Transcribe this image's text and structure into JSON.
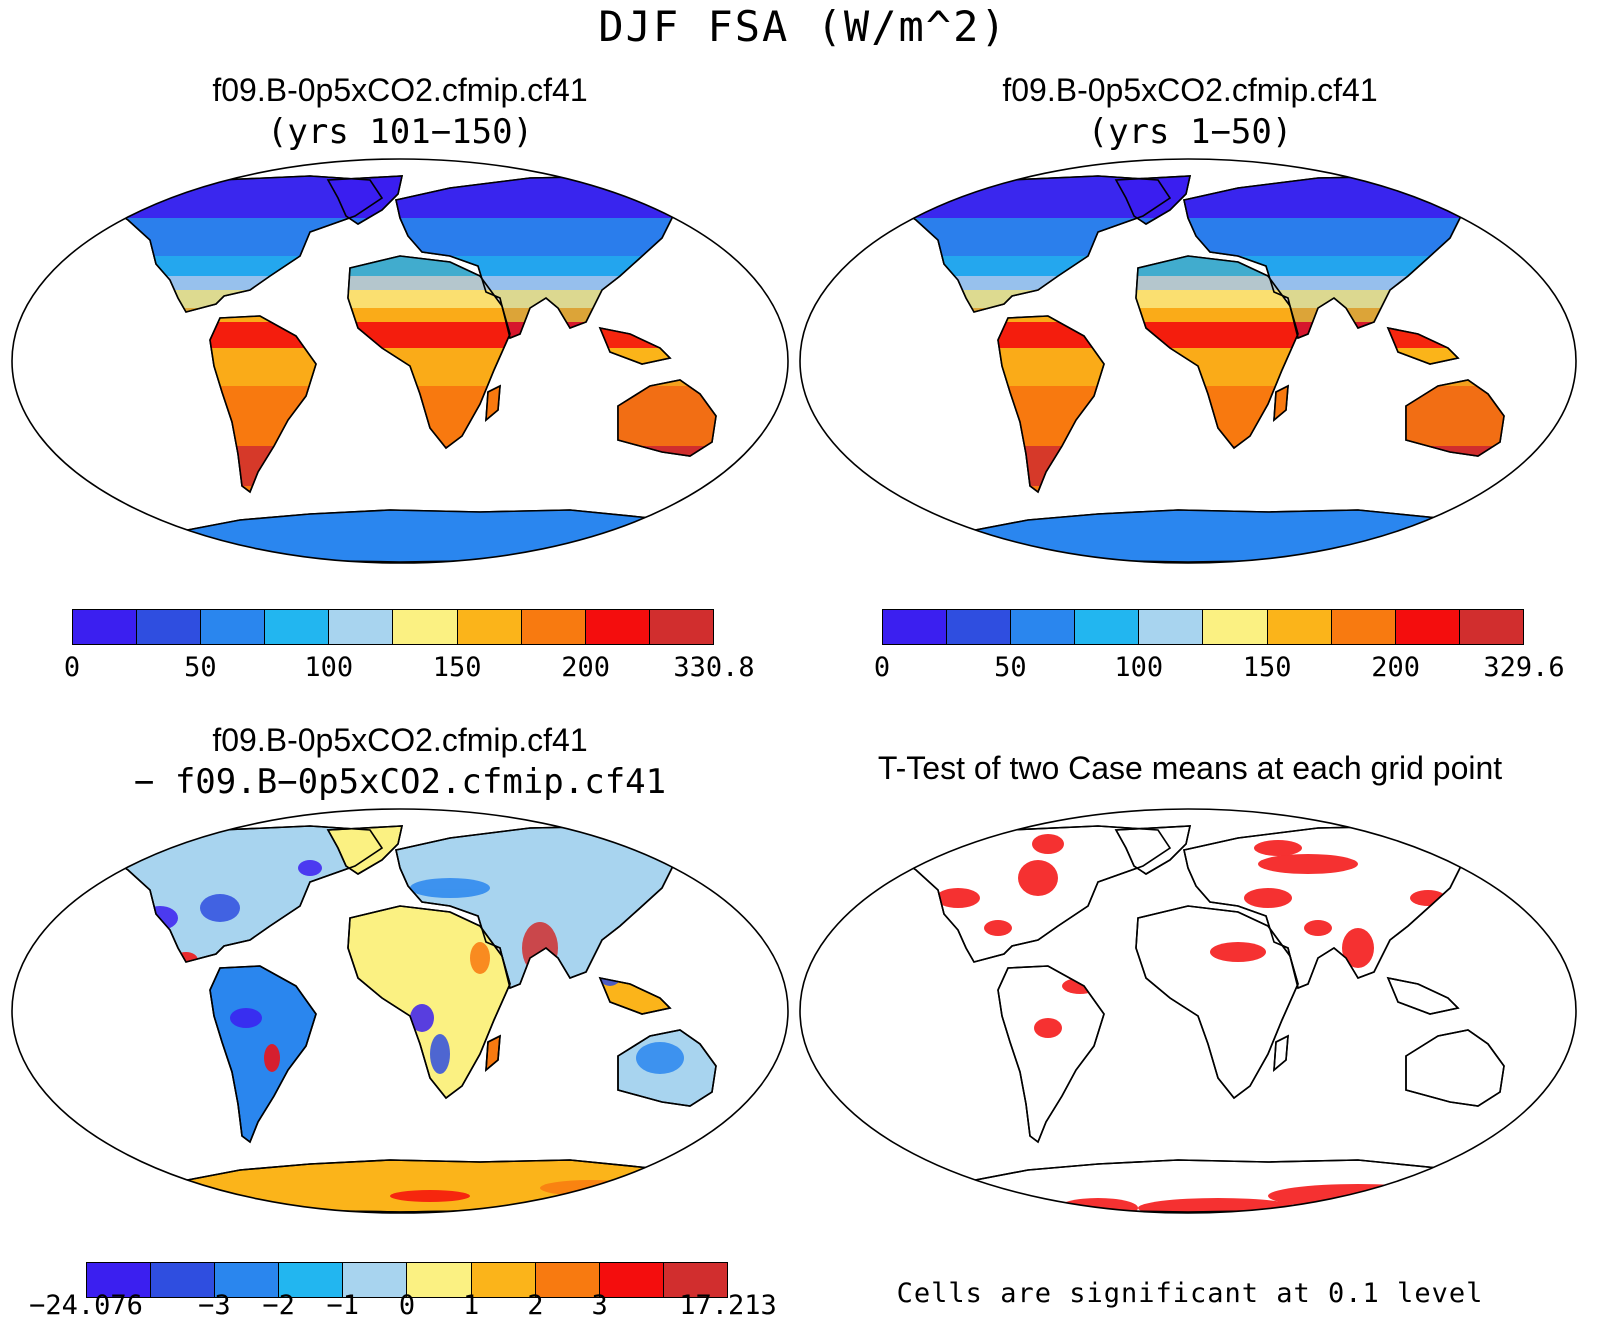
{
  "title": "DJF FSA (W/m^2)",
  "panels": [
    {
      "line1": "f09.B-0p5xCO2.cfmip.cf41",
      "line2": "(yrs 101−150)",
      "colors": [
        "#3b1ff0",
        "#2f4ee0",
        "#2a86ee",
        "#22b6f0",
        "#a8d4ef",
        "#fbf182",
        "#fbb41a",
        "#f87a10",
        "#f40d0d",
        "#d12e2e"
      ],
      "ticks": [
        "0",
        "50",
        "100",
        "150",
        "200",
        "330.8"
      ]
    },
    {
      "line1": "f09.B-0p5xCO2.cfmip.cf41",
      "line2": "(yrs 1−50)",
      "colors": [
        "#3b1ff0",
        "#2f4ee0",
        "#2a86ee",
        "#22b6f0",
        "#a8d4ef",
        "#fbf182",
        "#fbb41a",
        "#f87a10",
        "#f40d0d",
        "#d12e2e"
      ],
      "ticks": [
        "0",
        "50",
        "100",
        "150",
        "200",
        "329.6"
      ]
    },
    {
      "line1": "f09.B-0p5xCO2.cfmip.cf41",
      "line2": "− f09.B−0p5xCO2.cfmip.cf41",
      "colors": [
        "#3b1ff0",
        "#2f4ee0",
        "#2a86ee",
        "#22b6f0",
        "#a8d4ef",
        "#fbf182",
        "#fbb41a",
        "#f87a10",
        "#f40d0d",
        "#d12e2e"
      ],
      "ticks": [
        "−24.076",
        "−3",
        "−2",
        "−1",
        "0",
        "1",
        "2",
        "3",
        "17.213"
      ]
    },
    {
      "line1": "T-Test of two Case means at each grid point",
      "note": "Cells are significant at 0.1 level",
      "sig_color": "#f40d0d"
    }
  ]
}
